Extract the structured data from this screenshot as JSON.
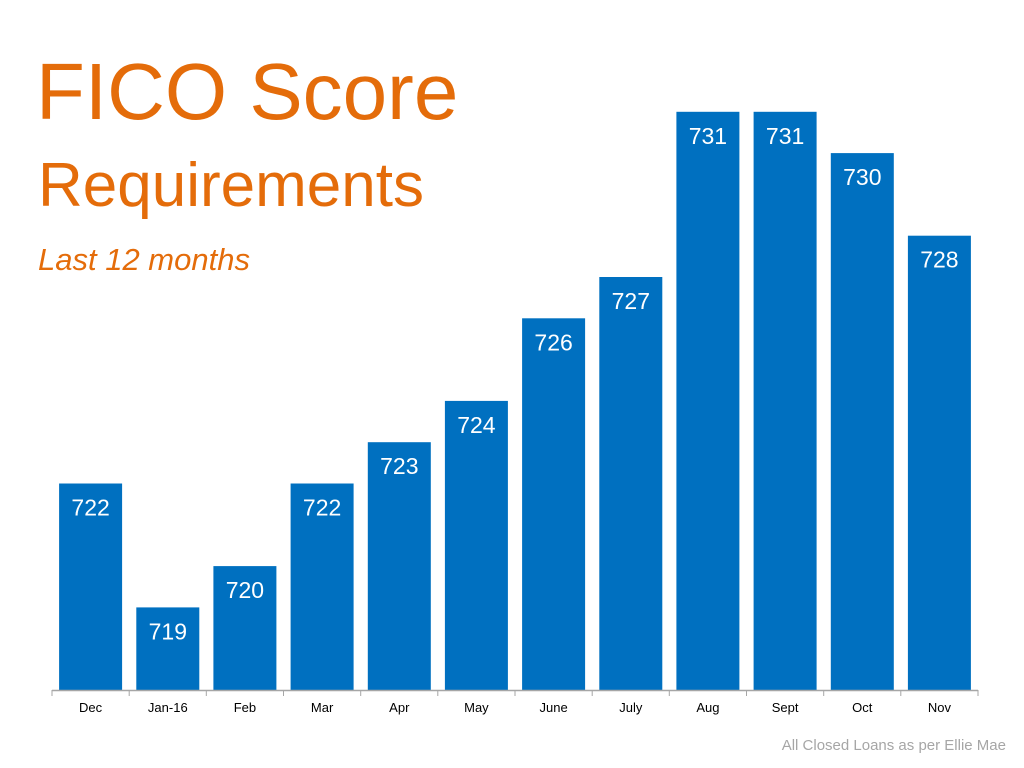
{
  "colors": {
    "title": "#E46C0A",
    "bar": "#0070C0",
    "data_label": "#FFFFFF",
    "axis": "#A6A6A6",
    "tick_label": "#000000",
    "footnote": "#A6A6A6"
  },
  "title_line_1": "FICO Score",
  "title_line_2": "Requirements",
  "subtitle": "Last 12 months",
  "footnote": "All Closed Loans as per Ellie Mae",
  "chart_data": {
    "type": "bar",
    "title": "FICO Score Requirements",
    "subtitle": "Last 12 months",
    "categories": [
      "Dec",
      "Jan-16",
      "Feb",
      "Mar",
      "Apr",
      "May",
      "June",
      "July",
      "Aug",
      "Sept",
      "Oct",
      "Nov"
    ],
    "values": [
      722,
      719,
      720,
      722,
      723,
      724,
      726,
      727,
      731,
      731,
      730,
      728
    ],
    "ylim": [
      717,
      733
    ],
    "grid": false,
    "legend": "none",
    "data_labels": "inside-top"
  }
}
